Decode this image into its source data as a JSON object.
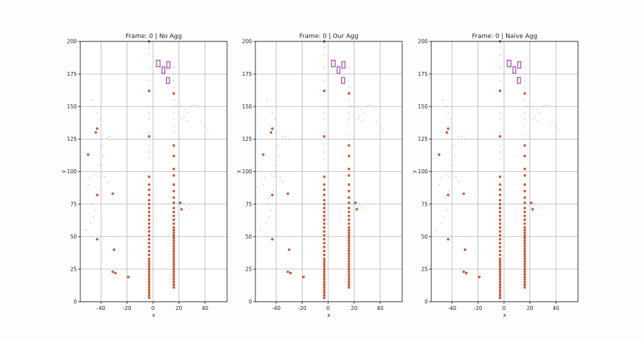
{
  "chart_data": [
    {
      "type": "scatter",
      "title": "Frame: 0 | No Agg",
      "xlabel": "x",
      "ylabel": "y",
      "xlim": [
        -56,
        57
      ],
      "ylim": [
        0,
        200
      ],
      "xticks": [
        -40,
        -20,
        0,
        20,
        40
      ],
      "yticks": [
        0,
        25,
        50,
        75,
        100,
        125,
        150,
        175,
        200
      ],
      "grid": true,
      "gt_boxes": [
        {
          "x": 4,
          "y": 183,
          "w": 2.8,
          "h": 5
        },
        {
          "x": 8,
          "y": 178,
          "w": 2.2,
          "h": 5
        },
        {
          "x": 11.8,
          "y": 182,
          "w": 2.4,
          "h": 5
        },
        {
          "x": 11.5,
          "y": 170,
          "w": 2.4,
          "h": 4.5
        }
      ],
      "detections_x": [
        -3,
        -3,
        -3,
        -3,
        -3,
        -3,
        -3,
        -3,
        -3,
        -3,
        -3,
        -3,
        -3,
        -3,
        -3,
        -3,
        -3,
        -3,
        -3,
        -3,
        -3,
        -3,
        -3,
        -3,
        -3,
        -3,
        -3,
        -3,
        -3,
        -3,
        -3,
        -3,
        -3,
        -3,
        -3,
        -3,
        -3,
        -3,
        16,
        16,
        16,
        16,
        16,
        16,
        16,
        16,
        16,
        16,
        16,
        16,
        16,
        16,
        16,
        16,
        16,
        16,
        16,
        16,
        16,
        16,
        16,
        16,
        16,
        16,
        16,
        16,
        16,
        16,
        16,
        16,
        16,
        16,
        16,
        16,
        16,
        16,
        -44,
        -43,
        -50,
        -43,
        -31,
        -43,
        -30,
        -31,
        -29,
        21,
        22,
        -19
      ],
      "detections_y": [
        3,
        5,
        7,
        9,
        11,
        13,
        15,
        17,
        19,
        21,
        23,
        25,
        27,
        29,
        31,
        33,
        36,
        39,
        42,
        45,
        48,
        51,
        54,
        57,
        60,
        63,
        66,
        69,
        72,
        75,
        78,
        82,
        86,
        90,
        96,
        127,
        162,
        200,
        11,
        13,
        15,
        17,
        19,
        21,
        23,
        25,
        27,
        29,
        31,
        33,
        35,
        37,
        39,
        41,
        43,
        45,
        47,
        49,
        51,
        53,
        55,
        57,
        60,
        63,
        66,
        69,
        72,
        76,
        80,
        85,
        90,
        97,
        102,
        112,
        120,
        160,
        130,
        133,
        113,
        82,
        83,
        48,
        40,
        23,
        22,
        76,
        71,
        19
      ],
      "lidar_x": [
        -3,
        -3,
        -3,
        -3,
        -3,
        -3,
        -3,
        -3,
        -3,
        -3,
        -3,
        16,
        16,
        16,
        16,
        16,
        16,
        16,
        16,
        16,
        16,
        16,
        -52,
        -48,
        -46,
        -44,
        -47,
        -45,
        -42,
        -50,
        -49,
        -44,
        -42,
        -40,
        -41,
        -38,
        -39,
        -35,
        -33,
        -30,
        -45,
        -47,
        -43,
        -41,
        18,
        20,
        22,
        25,
        27,
        29,
        32,
        35,
        37,
        40,
        42,
        24,
        26,
        28,
        22,
        24,
        26,
        -40,
        -37,
        -35
      ],
      "lidar_y": [
        110,
        115,
        120,
        130,
        140,
        145,
        150,
        170,
        180,
        190,
        195,
        125,
        130,
        135,
        140,
        145,
        150,
        155,
        165,
        170,
        175,
        180,
        55,
        60,
        65,
        70,
        75,
        80,
        85,
        90,
        95,
        98,
        96,
        95,
        105,
        112,
        120,
        126,
        127,
        125,
        150,
        155,
        145,
        140,
        150,
        152,
        150,
        148,
        145,
        150,
        151,
        150,
        138,
        135,
        132,
        75,
        73,
        72,
        140,
        142,
        139,
        99,
        96,
        92
      ]
    },
    {
      "type": "scatter",
      "title": "Frame: 0 | Our Agg",
      "xlabel": "x",
      "ylabel": "y",
      "xlim": [
        -56,
        57
      ],
      "ylim": [
        0,
        200
      ],
      "xticks": [
        -40,
        -20,
        0,
        20,
        40
      ],
      "yticks": [
        0,
        25,
        50,
        75,
        100,
        125,
        150,
        175,
        200
      ],
      "grid": true,
      "gt_boxes": [
        {
          "x": 4,
          "y": 183,
          "w": 2.8,
          "h": 5
        },
        {
          "x": 8,
          "y": 178,
          "w": 2.2,
          "h": 5
        },
        {
          "x": 11.8,
          "y": 182,
          "w": 2.4,
          "h": 5
        },
        {
          "x": 11.5,
          "y": 170,
          "w": 2.4,
          "h": 4.5
        }
      ],
      "detections_x": [
        -3,
        -3,
        -3,
        -3,
        -3,
        -3,
        -3,
        -3,
        -3,
        -3,
        -3,
        -3,
        -3,
        -3,
        -3,
        -3,
        -3,
        -3,
        -3,
        -3,
        -3,
        -3,
        -3,
        -3,
        -3,
        -3,
        -3,
        -3,
        -3,
        -3,
        -3,
        -3,
        -3,
        -3,
        -3,
        -3,
        -3,
        -3,
        16,
        16,
        16,
        16,
        16,
        16,
        16,
        16,
        16,
        16,
        16,
        16,
        16,
        16,
        16,
        16,
        16,
        16,
        16,
        16,
        16,
        16,
        16,
        16,
        16,
        16,
        16,
        16,
        16,
        16,
        16,
        16,
        16,
        16,
        16,
        16,
        16,
        16,
        -44,
        -43,
        -50,
        -43,
        -31,
        -43,
        -30,
        -31,
        -29,
        21,
        22,
        -19
      ],
      "detections_y": [
        3,
        5,
        7,
        9,
        11,
        13,
        15,
        17,
        19,
        21,
        23,
        25,
        27,
        29,
        31,
        33,
        36,
        39,
        42,
        45,
        48,
        51,
        54,
        57,
        60,
        63,
        66,
        69,
        72,
        75,
        78,
        82,
        86,
        90,
        96,
        127,
        162,
        200,
        11,
        13,
        15,
        17,
        19,
        21,
        23,
        25,
        27,
        29,
        31,
        33,
        35,
        37,
        39,
        41,
        43,
        45,
        47,
        49,
        51,
        53,
        55,
        57,
        60,
        63,
        66,
        69,
        72,
        76,
        80,
        85,
        90,
        97,
        102,
        112,
        120,
        160,
        130,
        133,
        113,
        82,
        83,
        48,
        40,
        23,
        22,
        76,
        71,
        19
      ],
      "lidar_x": [
        -3,
        -3,
        -3,
        -3,
        -3,
        -3,
        -3,
        -3,
        -3,
        -3,
        -3,
        16,
        16,
        16,
        16,
        16,
        16,
        16,
        16,
        16,
        16,
        16,
        -52,
        -48,
        -46,
        -44,
        -47,
        -45,
        -42,
        -50,
        -49,
        -44,
        -42,
        -40,
        -41,
        -38,
        -39,
        -35,
        -33,
        -30,
        -45,
        -47,
        -43,
        -41,
        18,
        20,
        22,
        25,
        27,
        29,
        32,
        35,
        37,
        40,
        42,
        24,
        26,
        28,
        22,
        24,
        26,
        -40,
        -37,
        -35
      ],
      "lidar_y": [
        110,
        115,
        120,
        130,
        140,
        145,
        150,
        170,
        180,
        190,
        195,
        125,
        130,
        135,
        140,
        145,
        150,
        155,
        165,
        170,
        175,
        180,
        55,
        60,
        65,
        70,
        75,
        80,
        85,
        90,
        95,
        98,
        96,
        95,
        105,
        112,
        120,
        126,
        127,
        125,
        150,
        155,
        145,
        140,
        150,
        152,
        150,
        148,
        145,
        150,
        151,
        150,
        138,
        135,
        132,
        75,
        73,
        72,
        140,
        142,
        139,
        99,
        96,
        92
      ]
    },
    {
      "type": "scatter",
      "title": "Frame: 0 | Naive Agg",
      "xlabel": "x",
      "ylabel": "y",
      "xlim": [
        -56,
        57
      ],
      "ylim": [
        0,
        200
      ],
      "xticks": [
        -40,
        -20,
        0,
        20,
        40
      ],
      "yticks": [
        0,
        25,
        50,
        75,
        100,
        125,
        150,
        175,
        200
      ],
      "grid": true,
      "gt_boxes": [
        {
          "x": 4,
          "y": 183,
          "w": 2.8,
          "h": 5
        },
        {
          "x": 8,
          "y": 178,
          "w": 2.2,
          "h": 5
        },
        {
          "x": 11.8,
          "y": 182,
          "w": 2.4,
          "h": 5
        },
        {
          "x": 11.5,
          "y": 170,
          "w": 2.4,
          "h": 4.5
        }
      ],
      "detections_x": [
        -3,
        -3,
        -3,
        -3,
        -3,
        -3,
        -3,
        -3,
        -3,
        -3,
        -3,
        -3,
        -3,
        -3,
        -3,
        -3,
        -3,
        -3,
        -3,
        -3,
        -3,
        -3,
        -3,
        -3,
        -3,
        -3,
        -3,
        -3,
        -3,
        -3,
        -3,
        -3,
        -3,
        -3,
        -3,
        -3,
        -3,
        -3,
        16,
        16,
        16,
        16,
        16,
        16,
        16,
        16,
        16,
        16,
        16,
        16,
        16,
        16,
        16,
        16,
        16,
        16,
        16,
        16,
        16,
        16,
        16,
        16,
        16,
        16,
        16,
        16,
        16,
        16,
        16,
        16,
        16,
        16,
        16,
        16,
        16,
        16,
        -44,
        -43,
        -50,
        -43,
        -31,
        -43,
        -30,
        -31,
        -29,
        21,
        22,
        -19
      ],
      "detections_y": [
        3,
        5,
        7,
        9,
        11,
        13,
        15,
        17,
        19,
        21,
        23,
        25,
        27,
        29,
        31,
        33,
        36,
        39,
        42,
        45,
        48,
        51,
        54,
        57,
        60,
        63,
        66,
        69,
        72,
        75,
        78,
        82,
        86,
        90,
        96,
        127,
        162,
        200,
        11,
        13,
        15,
        17,
        19,
        21,
        23,
        25,
        27,
        29,
        31,
        33,
        35,
        37,
        39,
        41,
        43,
        45,
        47,
        49,
        51,
        53,
        55,
        57,
        60,
        63,
        66,
        69,
        72,
        76,
        80,
        85,
        90,
        97,
        102,
        112,
        120,
        160,
        130,
        133,
        113,
        82,
        83,
        48,
        40,
        23,
        22,
        76,
        71,
        19
      ],
      "lidar_x": [
        -3,
        -3,
        -3,
        -3,
        -3,
        -3,
        -3,
        -3,
        -3,
        -3,
        -3,
        16,
        16,
        16,
        16,
        16,
        16,
        16,
        16,
        16,
        16,
        16,
        -52,
        -48,
        -46,
        -44,
        -47,
        -45,
        -42,
        -50,
        -49,
        -44,
        -42,
        -40,
        -41,
        -38,
        -39,
        -35,
        -33,
        -30,
        -45,
        -47,
        -43,
        -41,
        18,
        20,
        22,
        25,
        27,
        29,
        32,
        35,
        37,
        40,
        42,
        24,
        26,
        28,
        22,
        24,
        26,
        -40,
        -37,
        -35
      ],
      "lidar_y": [
        110,
        115,
        120,
        130,
        140,
        145,
        150,
        170,
        180,
        190,
        195,
        125,
        130,
        135,
        140,
        145,
        150,
        155,
        165,
        170,
        175,
        180,
        55,
        60,
        65,
        70,
        75,
        80,
        85,
        90,
        95,
        98,
        96,
        95,
        105,
        112,
        120,
        126,
        127,
        125,
        150,
        155,
        145,
        140,
        150,
        152,
        150,
        148,
        145,
        150,
        151,
        150,
        138,
        135,
        132,
        75,
        73,
        72,
        140,
        142,
        139,
        99,
        96,
        92
      ]
    }
  ],
  "colors": {
    "grid": "#b0b0b0",
    "axes": "#000000",
    "box": "#a040a0",
    "detection_fill": "#e8673c",
    "detection_edge": "#7a2a10",
    "lidar": "#7a8aa8"
  }
}
